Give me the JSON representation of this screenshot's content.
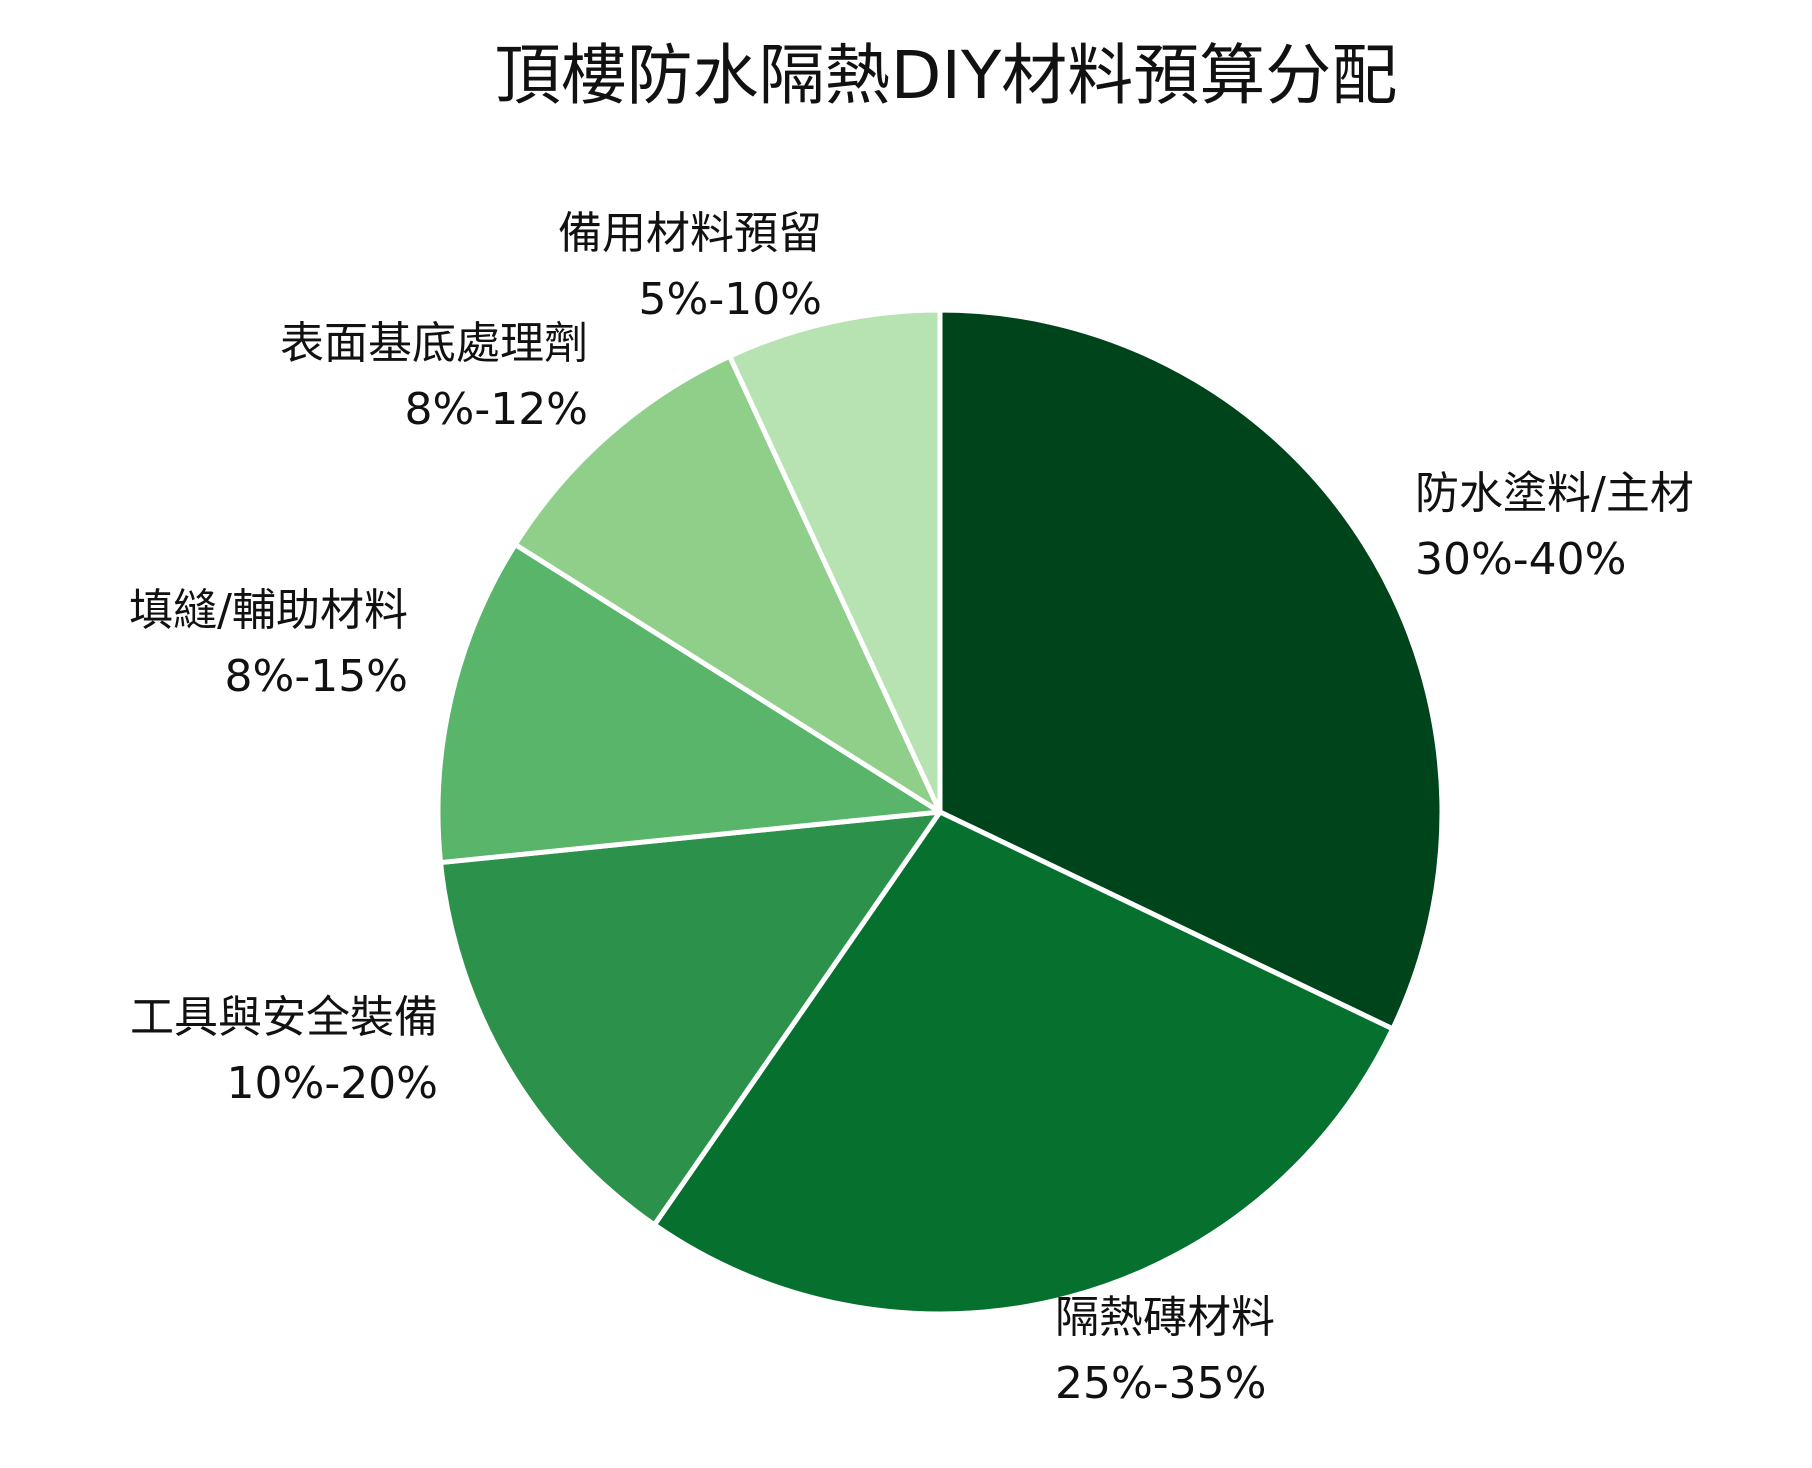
{
  "chart_data": {
    "type": "pie",
    "title": "頂樓防水隔熱DIY材料預算分配",
    "slices": [
      {
        "label": "防水塗料/主材",
        "range": "30%-40%",
        "value": 35,
        "color": "#00441b"
      },
      {
        "label": "隔熱磚材料",
        "range": "25%-35%",
        "value": 30,
        "color": "#06702f"
      },
      {
        "label": "工具與安全裝備",
        "range": "10%-20%",
        "value": 15,
        "color": "#2c924b"
      },
      {
        "label": "填縫/輔助材料",
        "range": "8%-15%",
        "value": 11.5,
        "color": "#58b56a"
      },
      {
        "label": "表面基底處理劑",
        "range": "8%-12%",
        "value": 10,
        "color": "#8fcf89"
      },
      {
        "label": "備用材料預留",
        "range": "5%-10%",
        "value": 7.5,
        "color": "#b7e2b1"
      }
    ],
    "start": "top, clockwise",
    "legend": "none (labels beside slices)"
  }
}
